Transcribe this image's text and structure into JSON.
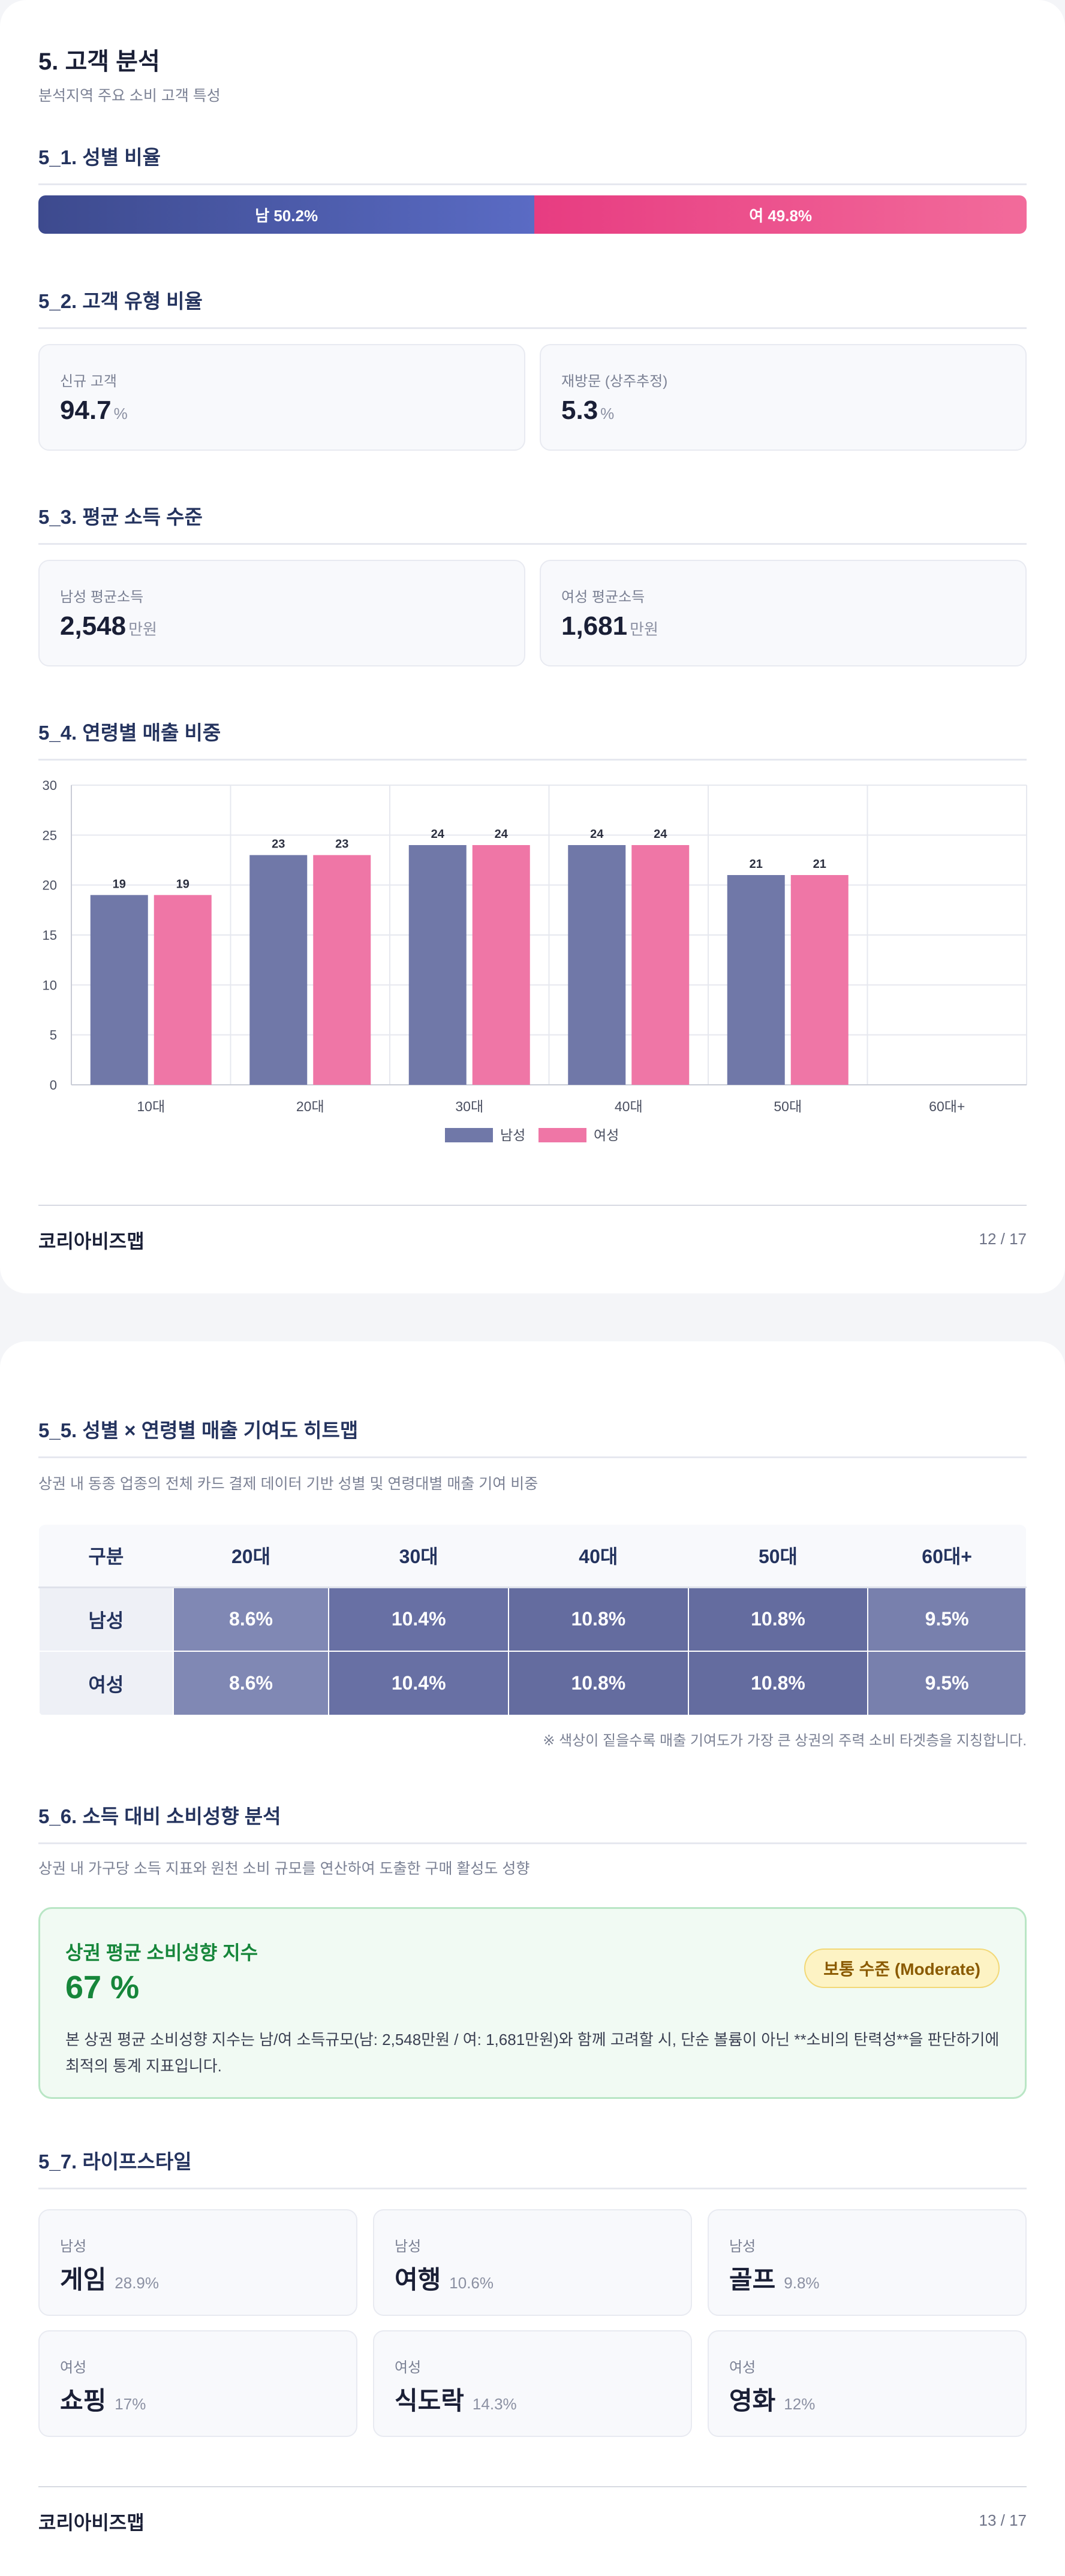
{
  "page1": {
    "title": "5. 고객 분석",
    "subtitle": "분석지역 주요 소비 고객 특성",
    "gender": {
      "section_title": "5_1. 성별 비율",
      "male_label": "남 50.2%",
      "female_label": "여 49.8%",
      "male_ratio": 50.2,
      "female_ratio": 49.8
    },
    "customer_type": {
      "section_title": "5_2. 고객 유형 비율",
      "cards": [
        {
          "label": "신규 고객",
          "value": "94.7",
          "unit": "%"
        },
        {
          "label": "재방문 (상주추정)",
          "value": "5.3",
          "unit": "%"
        }
      ]
    },
    "income": {
      "section_title": "5_3. 평균 소득 수준",
      "cards": [
        {
          "label": "남성 평균소득",
          "value": "2,548",
          "unit": "만원"
        },
        {
          "label": "여성 평균소득",
          "value": "1,681",
          "unit": "만원"
        }
      ]
    },
    "age_sales": {
      "section_title": "5_4. 연령별 매출 비중"
    },
    "footer": {
      "brand": "코리아비즈맵",
      "page": "12 / 17"
    }
  },
  "chart_data": {
    "type": "bar",
    "categories": [
      "10대",
      "20대",
      "30대",
      "40대",
      "50대",
      "60대+"
    ],
    "series": [
      {
        "name": "남성",
        "values": [
          19,
          23,
          24,
          24,
          21,
          null
        ],
        "color": "#7078a8"
      },
      {
        "name": "여성",
        "values": [
          19,
          23,
          24,
          24,
          21,
          null
        ],
        "color": "#ef76a6"
      }
    ],
    "data_labels": [
      "19",
      "19",
      "23",
      "23",
      "24",
      "24",
      "24",
      "24",
      "21",
      "21"
    ],
    "y_ticks": [
      "0",
      "5",
      "10",
      "15",
      "20",
      "25",
      "30"
    ],
    "ylim": [
      0,
      30
    ],
    "grid": true,
    "legend": "bottom"
  },
  "page2": {
    "heatmap": {
      "section_title": "5_5. 성별 × 연령별 매출 기여도 히트맵",
      "description": "상권 내 동종 업종의 전체 카드 결제 데이터 기반 성별 및 연령대별 매출 기여 비중",
      "corner": "구분",
      "columns": [
        "20대",
        "30대",
        "40대",
        "50대",
        "60대+"
      ],
      "rows": [
        {
          "label": "남성",
          "cells": [
            "8.6%",
            "10.4%",
            "10.8%",
            "10.8%",
            "9.5%"
          ]
        },
        {
          "label": "여성",
          "cells": [
            "8.6%",
            "10.4%",
            "10.8%",
            "10.8%",
            "9.5%"
          ]
        }
      ],
      "cell_colors": [
        "#8088b4",
        "#6870a4",
        "#646c9f",
        "#646c9f",
        "#7880ad"
      ],
      "note": "※ 색상이 짙을수록 매출 기여도가 가장 큰 상권의 주력 소비 타겟층을 지칭합니다."
    },
    "spending": {
      "section_title": "5_6. 소득 대비 소비성향 분석",
      "description": "상권 내 가구당 소득 지표와 원천 소비 규모를 연산하여 도출한 구매 활성도 성향",
      "box_title": "상권 평균 소비성향 지수",
      "value": "67 %",
      "badge": "보통 수준 (Moderate)",
      "text": "본 상권 평균 소비성향 지수는 남/여 소득규모(남: 2,548만원 / 여: 1,681만원)와 함께 고려할 시, 단순 볼륨이 아닌 **소비의 탄력성**을 판단하기에 최적의 통계 지표입니다."
    },
    "lifestyle": {
      "section_title": "5_7. 라이프스타일",
      "items": [
        {
          "gender": "남성",
          "name": "게임",
          "pct": "28.9%"
        },
        {
          "gender": "남성",
          "name": "여행",
          "pct": "10.6%"
        },
        {
          "gender": "남성",
          "name": "골프",
          "pct": "9.8%"
        },
        {
          "gender": "여성",
          "name": "쇼핑",
          "pct": "17%"
        },
        {
          "gender": "여성",
          "name": "식도락",
          "pct": "14.3%"
        },
        {
          "gender": "여성",
          "name": "영화",
          "pct": "12%"
        }
      ]
    },
    "footer": {
      "brand": "코리아비즈맵",
      "page": "13 / 17"
    }
  }
}
